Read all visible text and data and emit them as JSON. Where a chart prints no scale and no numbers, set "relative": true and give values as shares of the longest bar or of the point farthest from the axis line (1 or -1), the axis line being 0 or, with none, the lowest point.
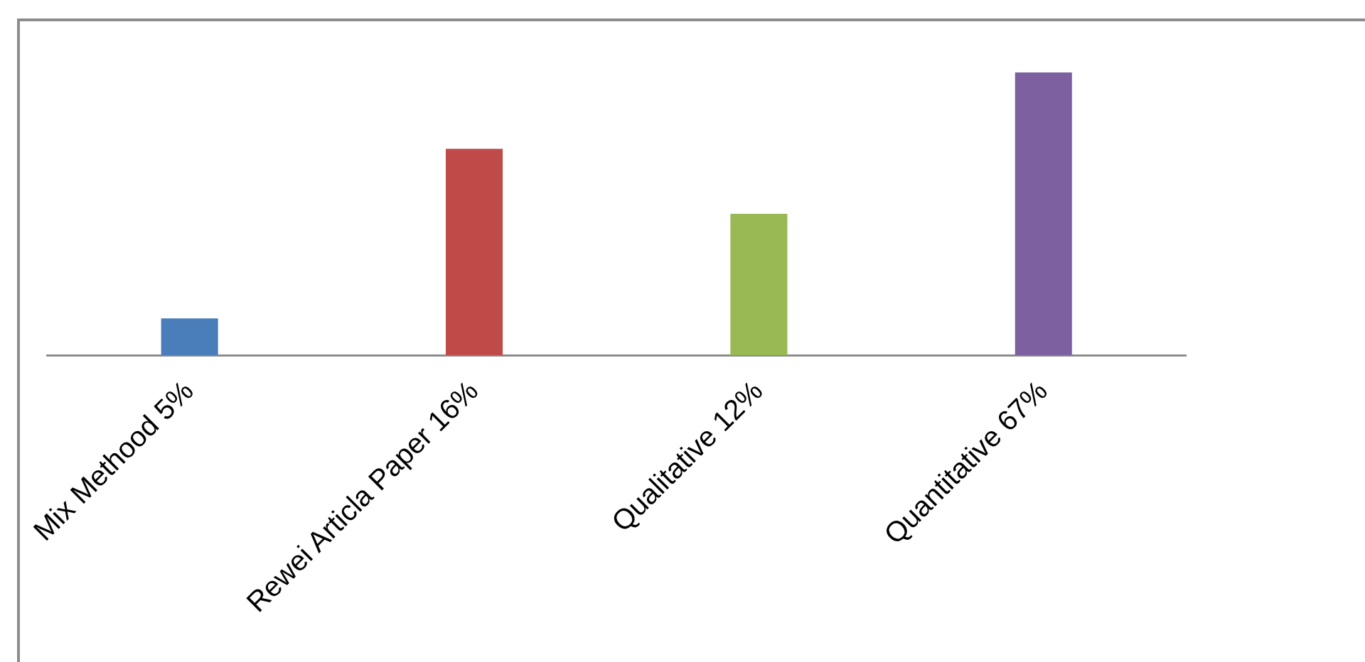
{
  "chart_data": {
    "type": "bar",
    "relative": true,
    "categories": [
      "Mix Methood 5%",
      "Rewei Articla Paper 16%",
      "Qualitative 12%",
      "Quantitative 67%"
    ],
    "values": [
      0.13,
      0.73,
      0.5,
      1
    ],
    "colors": [
      "#4a7ebb",
      "#be4b48",
      "#98b954",
      "#7d60a0"
    ],
    "grid": false,
    "legend": false
  }
}
